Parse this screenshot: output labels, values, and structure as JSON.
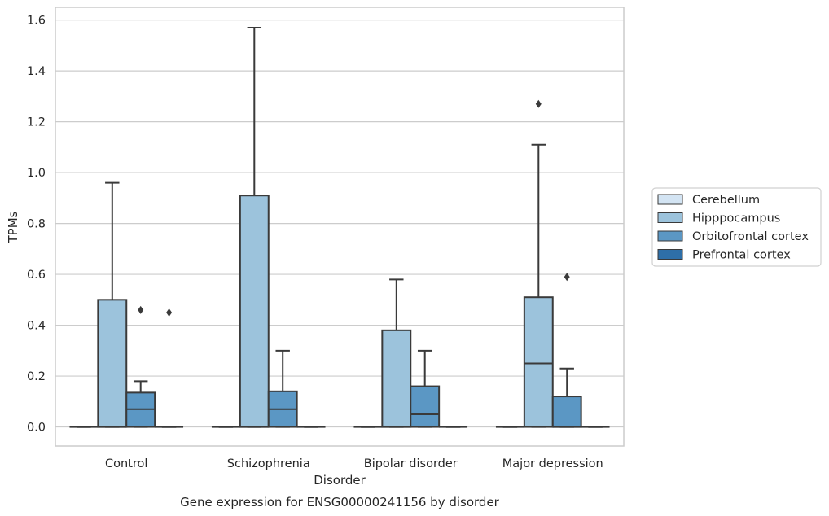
{
  "chart_data": {
    "type": "box",
    "title": "Gene expression for ENSG00000241156 by disorder",
    "xlabel": "Disorder",
    "ylabel": "TPMs",
    "categories": [
      "Control",
      "Schizophrenia",
      "Bipolar disorder",
      "Major depression"
    ],
    "ylim": [
      -0.075,
      1.65
    ],
    "yticks": [
      "0.0",
      "0.2",
      "0.4",
      "0.6",
      "0.8",
      "1.0",
      "1.2",
      "1.4",
      "1.6"
    ],
    "grid": true,
    "legend_position": "right",
    "series": [
      {
        "name": "Cerebellum",
        "color": "#d3e4f3",
        "boxes": [
          {
            "q1": 0,
            "median": 0,
            "q3": 0,
            "whisker_low": 0,
            "whisker_high": 0,
            "outliers": []
          },
          {
            "q1": 0,
            "median": 0,
            "q3": 0,
            "whisker_low": 0,
            "whisker_high": 0,
            "outliers": []
          },
          {
            "q1": 0,
            "median": 0,
            "q3": 0,
            "whisker_low": 0,
            "whisker_high": 0,
            "outliers": []
          },
          {
            "q1": 0,
            "median": 0,
            "q3": 0,
            "whisker_low": 0,
            "whisker_high": 0,
            "outliers": []
          }
        ]
      },
      {
        "name": "Hipppocampus",
        "color": "#9cc3dc",
        "boxes": [
          {
            "q1": 0,
            "median": 0,
            "q3": 0.5,
            "whisker_low": 0,
            "whisker_high": 0.96,
            "outliers": []
          },
          {
            "q1": 0,
            "median": 0,
            "q3": 0.91,
            "whisker_low": 0,
            "whisker_high": 1.57,
            "outliers": []
          },
          {
            "q1": 0,
            "median": 0,
            "q3": 0.38,
            "whisker_low": 0,
            "whisker_high": 0.58,
            "outliers": []
          },
          {
            "q1": 0,
            "median": 0.25,
            "q3": 0.51,
            "whisker_low": 0,
            "whisker_high": 1.11,
            "outliers": [
              1.27
            ]
          }
        ]
      },
      {
        "name": "Orbitofrontal cortex",
        "color": "#5b97c4",
        "boxes": [
          {
            "q1": 0,
            "median": 0.07,
            "q3": 0.135,
            "whisker_low": 0,
            "whisker_high": 0.18,
            "outliers": [
              0.46
            ]
          },
          {
            "q1": 0,
            "median": 0.07,
            "q3": 0.14,
            "whisker_low": 0,
            "whisker_high": 0.3,
            "outliers": []
          },
          {
            "q1": 0,
            "median": 0.05,
            "q3": 0.16,
            "whisker_low": 0,
            "whisker_high": 0.3,
            "outliers": []
          },
          {
            "q1": 0,
            "median": 0,
            "q3": 0.12,
            "whisker_low": 0,
            "whisker_high": 0.23,
            "outliers": [
              0.59
            ]
          }
        ]
      },
      {
        "name": "Prefrontal cortex",
        "color": "#2e6fa8",
        "boxes": [
          {
            "q1": 0,
            "median": 0,
            "q3": 0,
            "whisker_low": 0,
            "whisker_high": 0,
            "outliers": [
              0.45
            ]
          },
          {
            "q1": 0,
            "median": 0,
            "q3": 0,
            "whisker_low": 0,
            "whisker_high": 0,
            "outliers": []
          },
          {
            "q1": 0,
            "median": 0,
            "q3": 0,
            "whisker_low": 0,
            "whisker_high": 0,
            "outliers": []
          },
          {
            "q1": 0,
            "median": 0,
            "q3": 0,
            "whisker_low": 0,
            "whisker_high": 0,
            "outliers": []
          }
        ]
      }
    ]
  }
}
